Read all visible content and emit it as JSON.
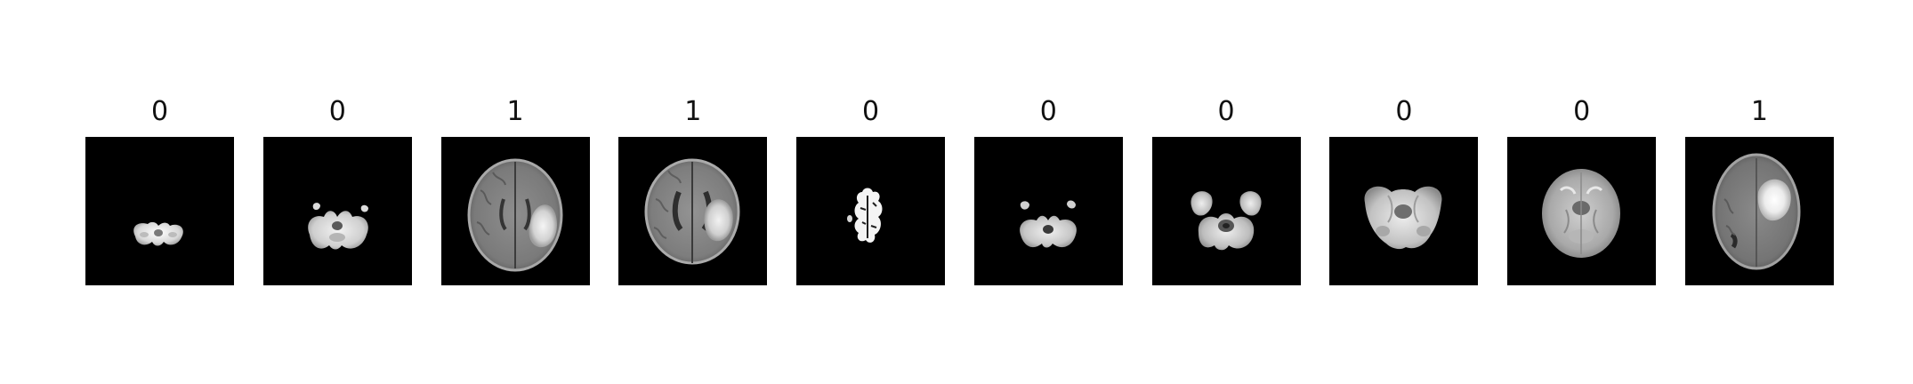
{
  "panels": [
    {
      "label": "0",
      "slice": "cerebellum-small"
    },
    {
      "label": "0",
      "slice": "cerebellum-lower"
    },
    {
      "label": "1",
      "slice": "axial-lesion-right"
    },
    {
      "label": "1",
      "slice": "axial-lesion-right-mid"
    },
    {
      "label": "0",
      "slice": "vertex-fragment"
    },
    {
      "label": "0",
      "slice": "posterior-fossa"
    },
    {
      "label": "0",
      "slice": "temporal-lobes"
    },
    {
      "label": "0",
      "slice": "midbrain-level"
    },
    {
      "label": "0",
      "slice": "basal-level"
    },
    {
      "label": "1",
      "slice": "axial-bright-lesion"
    }
  ]
}
